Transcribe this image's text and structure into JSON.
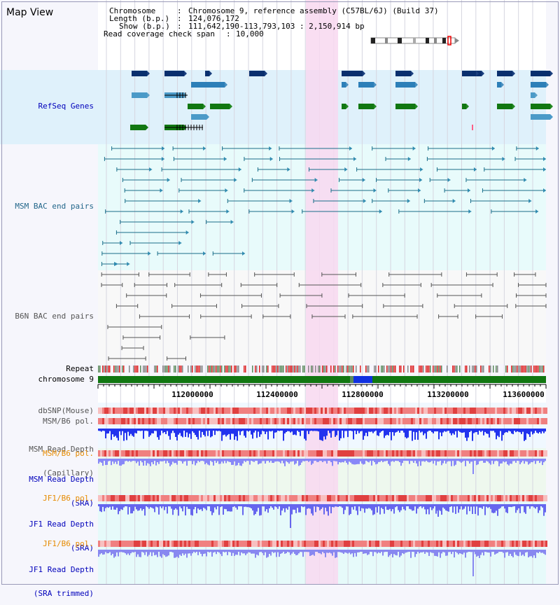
{
  "title": "Map View",
  "info": {
    "chromosome_key": "Chromosome",
    "chromosome_value": "Chromosome 9, reference assembly (C57BL/6J) (Build 37)",
    "length_key": "Length (b.p.)",
    "length_value": "124,076,172",
    "show_key": "Show (b.p.)",
    "show_value": "111,642,190-113,793,103 : 2,150,914 bp",
    "coverage_key": "Read coverage check span",
    "coverage_value": "10,000"
  },
  "tracks": {
    "refseq": "RefSeq Genes",
    "msm_bac": "MSM BAC end pairs",
    "b6n_bac": "B6N BAC end pairs",
    "repeat": "Repeat",
    "chromosome": "chromosome 9",
    "dbsnp": "dbSNP(Mouse)",
    "msm_b6_pol_1": "MSM/B6 pol.",
    "msm_depth_cap_1": "MSM Read Depth",
    "msm_depth_cap_2": "(Capillary)",
    "msm_b6_pol_2": "MSM/B6 pol.",
    "msm_depth_sra_1": "MSM Read Depth",
    "msm_depth_sra_2": "(SRA)",
    "jf1_b6_pol_1": "JF1/B6 pol.",
    "jf1_depth_sra_1": "JF1 Read Depth",
    "jf1_depth_sra_2": "(SRA)",
    "jf1_b6_pol_2": "JF1/B6 pol.",
    "jf1_depth_trim_1": "JF1 Read Depth",
    "jf1_depth_trim_2": "(SRA trimmed)"
  },
  "ruler_ticks": [
    "112000000",
    "112400000",
    "112800000",
    "113200000",
    "113600000"
  ],
  "colors": {
    "refseq_bg": "#dff1fb",
    "msm_bg": "#e8fbfb",
    "b6n_bg": "#f8f8f8",
    "highlight": "#f8d8f0",
    "chromosome_bar": "#117711",
    "label_blue": "#0000bb",
    "label_teal": "#22668a",
    "label_gray": "#555555",
    "label_orange": "#e68a00"
  }
}
